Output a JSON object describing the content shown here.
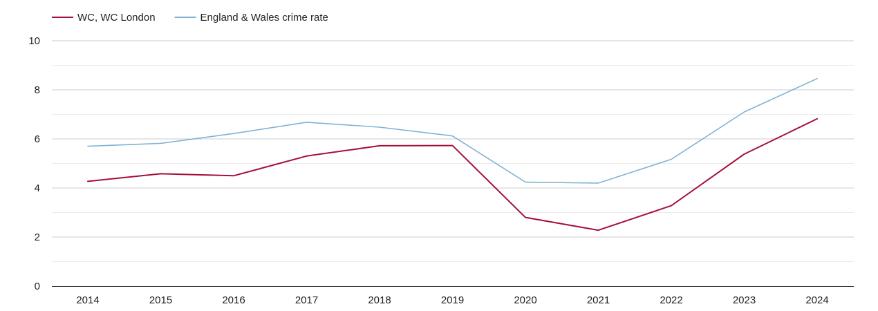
{
  "chart_data": {
    "type": "line",
    "title": "",
    "xlabel": "",
    "ylabel": "",
    "x": [
      "2014",
      "2015",
      "2016",
      "2017",
      "2018",
      "2019",
      "2020",
      "2021",
      "2022",
      "2023",
      "2024"
    ],
    "ylim": [
      0,
      10
    ],
    "yticks": [
      "0",
      "2",
      "4",
      "6",
      "8",
      "10"
    ],
    "grid": "horizontal",
    "legend_position": "top-left",
    "series": [
      {
        "name": "WC, WC London",
        "color": "#a50f37",
        "values": [
          4.27,
          4.58,
          4.5,
          5.3,
          5.72,
          5.73,
          2.8,
          2.28,
          3.28,
          5.38,
          6.82
        ]
      },
      {
        "name": "England & Wales crime rate",
        "color": "#7eb3d3",
        "values": [
          5.7,
          5.82,
          6.22,
          6.68,
          6.48,
          6.12,
          4.24,
          4.2,
          5.17,
          7.1,
          8.46
        ]
      }
    ]
  }
}
